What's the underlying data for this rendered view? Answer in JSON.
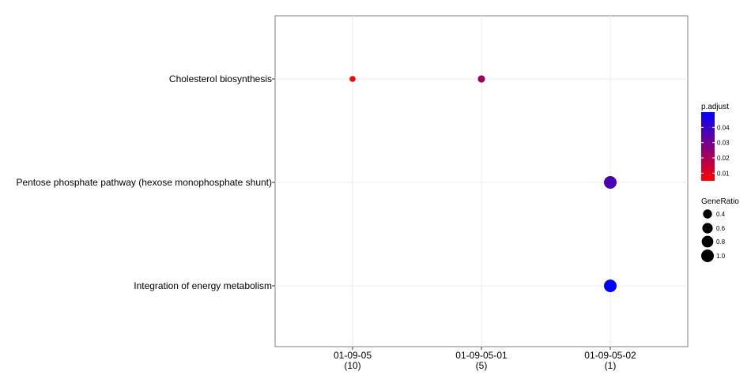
{
  "chart_data": {
    "type": "scatter",
    "title": "",
    "xlabel": "",
    "ylabel": "",
    "x_categories": [
      {
        "line1": "01-09-05",
        "line2": "(10)"
      },
      {
        "line1": "01-09-05-01",
        "line2": "(5)"
      },
      {
        "line1": "01-09-05-02",
        "line2": "(1)"
      }
    ],
    "y_categories": [
      "Cholesterol biosynthesis",
      "Pentose phosphate pathway (hexose monophosphate shunt)",
      "Integration of energy metabolism"
    ],
    "points": [
      {
        "x": "01-09-05",
        "y": "Cholesterol biosynthesis",
        "gene_ratio": 0.1,
        "p_adjust": 0.005
      },
      {
        "x": "01-09-05-01",
        "y": "Cholesterol biosynthesis",
        "gene_ratio": 0.2,
        "p_adjust": 0.022
      },
      {
        "x": "01-09-05-02",
        "y": "Pentose phosphate pathway (hexose monophosphate shunt)",
        "gene_ratio": 1.0,
        "p_adjust": 0.037
      },
      {
        "x": "01-09-05-02",
        "y": "Integration of energy metabolism",
        "gene_ratio": 1.0,
        "p_adjust": 0.05
      }
    ],
    "grid": true,
    "legend_position": "right",
    "color_legend": {
      "title": "p.adjust",
      "ticks": [
        0.01,
        0.02,
        0.03,
        0.04
      ],
      "tick_labels": [
        "0.01",
        "0.02",
        "0.03",
        "0.04"
      ],
      "range": [
        0.005,
        0.05
      ],
      "low_color": "#ff0000",
      "high_color": "#0000ff"
    },
    "size_legend": {
      "title": "GeneRatio",
      "values": [
        0.4,
        0.6,
        0.8,
        1.0
      ],
      "labels": [
        "0.4",
        "0.6",
        "0.8",
        "1.0"
      ]
    }
  }
}
